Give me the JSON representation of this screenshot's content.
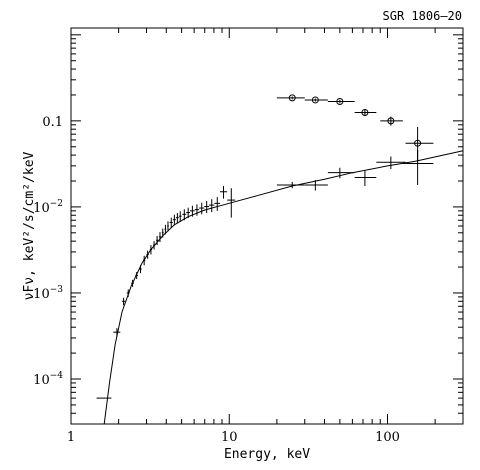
{
  "chart_data": {
    "type": "scatter",
    "title": "SGR 1806–20",
    "xlabel": "Energy, keV",
    "ylabel": "νFν, keV²/s/cm²/keV",
    "xscale": "log",
    "yscale": "log",
    "xlim": [
      1,
      300
    ],
    "ylim": [
      3e-05,
      1.2
    ],
    "x_ticks": [
      {
        "value": 1,
        "label": "1"
      },
      {
        "value": 10,
        "label": "10"
      },
      {
        "value": 100,
        "label": "100"
      }
    ],
    "y_ticks": [
      {
        "value": 0.0001,
        "label": "10^-4"
      },
      {
        "value": 0.001,
        "label": "10^-3"
      },
      {
        "value": 0.01,
        "label": "10^-2"
      },
      {
        "value": 0.1,
        "label": "0.1"
      }
    ],
    "grid": false,
    "series": [
      {
        "style": "crosses",
        "points": [
          {
            "x": 1.6,
            "y": 6e-05,
            "xerr": [
              1.45,
              1.8
            ],
            "yerr": [
              6e-05,
              6e-05
            ]
          },
          {
            "x": 1.95,
            "y": 0.00035,
            "xerr": [
              1.85,
              2.05
            ],
            "yerr": [
              0.00031,
              0.00039
            ]
          },
          {
            "x": 2.15,
            "y": 0.0008,
            "xerr": [
              2.1,
              2.2
            ],
            "yerr": [
              0.00072,
              0.00088
            ]
          },
          {
            "x": 2.3,
            "y": 0.001,
            "xerr": [
              2.25,
              2.35
            ],
            "yerr": [
              0.0009,
              0.0011
            ]
          },
          {
            "x": 2.45,
            "y": 0.0013,
            "xerr": [
              2.4,
              2.5
            ],
            "yerr": [
              0.00118,
              0.00142
            ]
          },
          {
            "x": 2.6,
            "y": 0.0016,
            "xerr": [
              2.55,
              2.65
            ],
            "yerr": [
              0.00145,
              0.00175
            ]
          },
          {
            "x": 2.75,
            "y": 0.0019,
            "xerr": [
              2.7,
              2.8
            ],
            "yerr": [
              0.0017,
              0.0021
            ]
          },
          {
            "x": 2.9,
            "y": 0.0024,
            "xerr": [
              2.85,
              2.95
            ],
            "yerr": [
              0.0021,
              0.0027
            ]
          },
          {
            "x": 3.05,
            "y": 0.0028,
            "xerr": [
              3.0,
              3.1
            ],
            "yerr": [
              0.0025,
              0.0031
            ]
          },
          {
            "x": 3.2,
            "y": 0.0032,
            "xerr": [
              3.15,
              3.25
            ],
            "yerr": [
              0.0028,
              0.0036
            ]
          },
          {
            "x": 3.35,
            "y": 0.0036,
            "xerr": [
              3.3,
              3.4
            ],
            "yerr": [
              0.0032,
              0.004
            ]
          },
          {
            "x": 3.5,
            "y": 0.0041,
            "xerr": [
              3.45,
              3.55
            ],
            "yerr": [
              0.0036,
              0.0046
            ]
          },
          {
            "x": 3.65,
            "y": 0.0045,
            "xerr": [
              3.6,
              3.7
            ],
            "yerr": [
              0.0039,
              0.0051
            ]
          },
          {
            "x": 3.8,
            "y": 0.005,
            "xerr": [
              3.75,
              3.85
            ],
            "yerr": [
              0.0044,
              0.0056
            ]
          },
          {
            "x": 3.95,
            "y": 0.0055,
            "xerr": [
              3.9,
              4.0
            ],
            "yerr": [
              0.0048,
              0.0062
            ]
          },
          {
            "x": 4.1,
            "y": 0.006,
            "xerr": [
              4.05,
              4.15
            ],
            "yerr": [
              0.0052,
              0.0068
            ]
          },
          {
            "x": 4.3,
            "y": 0.0066,
            "xerr": [
              4.2,
              4.4
            ],
            "yerr": [
              0.0057,
              0.0075
            ]
          },
          {
            "x": 4.5,
            "y": 0.0071,
            "xerr": [
              4.4,
              4.6
            ],
            "yerr": [
              0.0061,
              0.0081
            ]
          },
          {
            "x": 4.7,
            "y": 0.0075,
            "xerr": [
              4.6,
              4.8
            ],
            "yerr": [
              0.0065,
              0.0085
            ]
          },
          {
            "x": 4.9,
            "y": 0.0078,
            "xerr": [
              4.8,
              5.0
            ],
            "yerr": [
              0.0067,
              0.0089
            ]
          },
          {
            "x": 5.2,
            "y": 0.0082,
            "xerr": [
              5.05,
              5.35
            ],
            "yerr": [
              0.007,
              0.0094
            ]
          },
          {
            "x": 5.5,
            "y": 0.0086,
            "xerr": [
              5.35,
              5.65
            ],
            "yerr": [
              0.0074,
              0.0098
            ]
          },
          {
            "x": 5.85,
            "y": 0.009,
            "xerr": [
              5.65,
              6.05
            ],
            "yerr": [
              0.0077,
              0.0103
            ]
          },
          {
            "x": 6.25,
            "y": 0.0093,
            "xerr": [
              6.05,
              6.45
            ],
            "yerr": [
              0.0079,
              0.0107
            ]
          },
          {
            "x": 6.7,
            "y": 0.0097,
            "xerr": [
              6.45,
              6.95
            ],
            "yerr": [
              0.0082,
              0.0112
            ]
          },
          {
            "x": 7.2,
            "y": 0.0101,
            "xerr": [
              6.95,
              7.45
            ],
            "yerr": [
              0.0085,
              0.0117
            ]
          },
          {
            "x": 7.75,
            "y": 0.0105,
            "xerr": [
              7.45,
              8.05
            ],
            "yerr": [
              0.0087,
              0.0123
            ]
          },
          {
            "x": 8.4,
            "y": 0.011,
            "xerr": [
              8.05,
              8.75
            ],
            "yerr": [
              0.009,
              0.013
            ]
          },
          {
            "x": 9.2,
            "y": 0.015,
            "xerr": [
              8.75,
              9.7
            ],
            "yerr": [
              0.0125,
              0.0175
            ]
          },
          {
            "x": 10.3,
            "y": 0.012,
            "xerr": [
              9.7,
              10.9
            ],
            "yerr": [
              0.0075,
              0.0165
            ]
          },
          {
            "x": 25,
            "y": 0.018,
            "xerr": [
              20,
              30
            ],
            "yerr": [
              0.0165,
              0.0195
            ]
          },
          {
            "x": 35,
            "y": 0.018,
            "xerr": [
              30,
              42
            ],
            "yerr": [
              0.0155,
              0.0205
            ]
          },
          {
            "x": 50,
            "y": 0.025,
            "xerr": [
              42,
              62
            ],
            "yerr": [
              0.0215,
              0.0285
            ]
          },
          {
            "x": 72,
            "y": 0.022,
            "xerr": [
              62,
              85
            ],
            "yerr": [
              0.0175,
              0.0265
            ]
          },
          {
            "x": 105,
            "y": 0.033,
            "xerr": [
              85,
              130
            ],
            "yerr": [
              0.0275,
              0.0385
            ]
          },
          {
            "x": 155,
            "y": 0.032,
            "xerr": [
              125,
              195
            ],
            "yerr": [
              0.018,
              0.046
            ]
          }
        ]
      },
      {
        "style": "circles",
        "points": [
          {
            "x": 25,
            "y": 0.185,
            "xerr": [
              20,
              30
            ],
            "yerr": [
              0.178,
              0.192
            ]
          },
          {
            "x": 35,
            "y": 0.175,
            "xerr": [
              30,
              42
            ],
            "yerr": [
              0.168,
              0.182
            ]
          },
          {
            "x": 50,
            "y": 0.168,
            "xerr": [
              42,
              62
            ],
            "yerr": [
              0.16,
              0.176
            ]
          },
          {
            "x": 72,
            "y": 0.125,
            "xerr": [
              62,
              85
            ],
            "yerr": [
              0.115,
              0.135
            ]
          },
          {
            "x": 105,
            "y": 0.1,
            "xerr": [
              90,
              125
            ],
            "yerr": [
              0.088,
              0.112
            ]
          },
          {
            "x": 155,
            "y": 0.055,
            "xerr": [
              130,
              195
            ],
            "yerr": [
              0.033,
              0.085
            ]
          }
        ]
      },
      {
        "style": "line",
        "points": [
          {
            "x": 1.62,
            "y": 3e-05
          },
          {
            "x": 1.75,
            "y": 9e-05
          },
          {
            "x": 1.9,
            "y": 0.00025
          },
          {
            "x": 2.1,
            "y": 0.0006
          },
          {
            "x": 2.4,
            "y": 0.0012
          },
          {
            "x": 2.8,
            "y": 0.0022
          },
          {
            "x": 3.2,
            "y": 0.0032
          },
          {
            "x": 3.8,
            "y": 0.0046
          },
          {
            "x": 4.5,
            "y": 0.0062
          },
          {
            "x": 5.5,
            "y": 0.0077
          },
          {
            "x": 7,
            "y": 0.0092
          },
          {
            "x": 10,
            "y": 0.011
          },
          {
            "x": 15,
            "y": 0.0135
          },
          {
            "x": 25,
            "y": 0.0175
          },
          {
            "x": 40,
            "y": 0.021
          },
          {
            "x": 60,
            "y": 0.025
          },
          {
            "x": 100,
            "y": 0.03
          },
          {
            "x": 150,
            "y": 0.034
          },
          {
            "x": 300,
            "y": 0.045
          }
        ]
      }
    ]
  }
}
